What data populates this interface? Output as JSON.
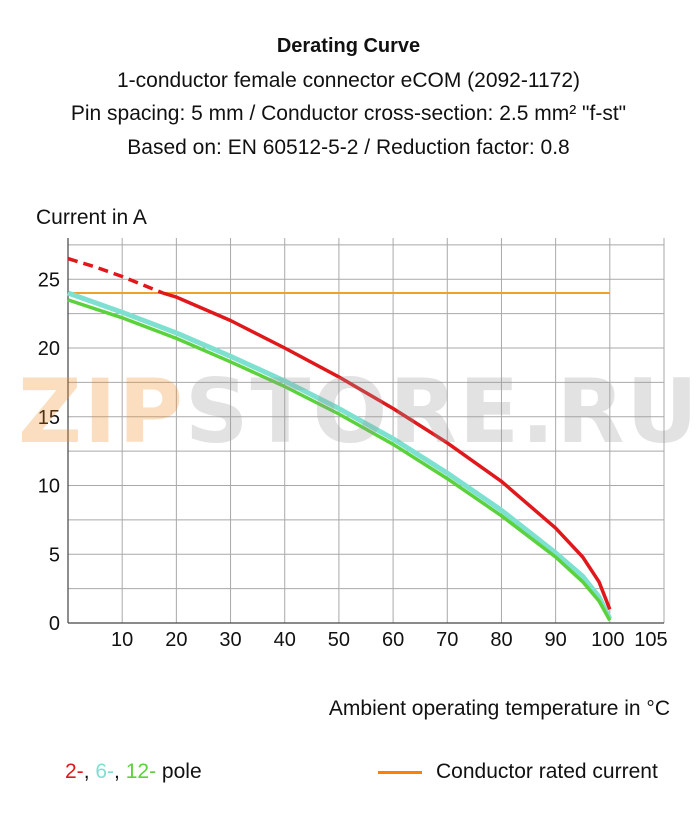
{
  "header": {
    "title": "Derating Curve",
    "line1": "1-conductor female connector eCOM (2092-1172)",
    "line2": "Pin spacing: 5 mm / Conductor cross-section: 2.5 mm² \"f-st\"",
    "line3": "Based on: EN 60512-5-2 / Reduction factor: 0.8"
  },
  "watermark": {
    "part1": "ZIP",
    "part2": "STORE.RU"
  },
  "chart_data": {
    "type": "line",
    "title": "Derating Curve",
    "xlabel": "Ambient operating temperature in °C",
    "ylabel": "Current in A",
    "xlim": [
      0,
      110
    ],
    "ylim": [
      0,
      28
    ],
    "x_ticks": [
      10,
      20,
      30,
      40,
      50,
      60,
      70,
      80,
      90,
      100,
      105
    ],
    "y_ticks": [
      0,
      5,
      10,
      15,
      20,
      25
    ],
    "grid": true,
    "series": [
      {
        "name": "2-",
        "color": "#e0181b",
        "extrapolated": [
          [
            0,
            26.5
          ],
          [
            5,
            25.9
          ],
          [
            10,
            25.2
          ],
          [
            15,
            24.4
          ],
          [
            17.5,
            24.0
          ]
        ],
        "points": [
          [
            17.5,
            24.0
          ],
          [
            20,
            23.7
          ],
          [
            30,
            22.0
          ],
          [
            40,
            20.0
          ],
          [
            50,
            17.9
          ],
          [
            60,
            15.6
          ],
          [
            70,
            13.1
          ],
          [
            80,
            10.3
          ],
          [
            90,
            6.9
          ],
          [
            95,
            4.8
          ],
          [
            98,
            3.0
          ],
          [
            100,
            1.0
          ]
        ]
      },
      {
        "name": "6-",
        "color": "#7de0d0",
        "points": [
          [
            0,
            24.0
          ],
          [
            10,
            22.6
          ],
          [
            20,
            21.1
          ],
          [
            30,
            19.4
          ],
          [
            40,
            17.6
          ],
          [
            50,
            15.6
          ],
          [
            60,
            13.4
          ],
          [
            70,
            10.9
          ],
          [
            80,
            8.2
          ],
          [
            90,
            5.1
          ],
          [
            95,
            3.4
          ],
          [
            98,
            1.9
          ],
          [
            100,
            0.3
          ]
        ]
      },
      {
        "name": "12-",
        "color": "#5bd23b",
        "points": [
          [
            0,
            23.5
          ],
          [
            10,
            22.2
          ],
          [
            20,
            20.7
          ],
          [
            30,
            19.0
          ],
          [
            40,
            17.2
          ],
          [
            50,
            15.2
          ],
          [
            60,
            13.0
          ],
          [
            70,
            10.5
          ],
          [
            80,
            7.8
          ],
          [
            90,
            4.8
          ],
          [
            95,
            3.0
          ],
          [
            98,
            1.6
          ],
          [
            100,
            0.2
          ]
        ]
      },
      {
        "name": "Conductor rated current",
        "color": "#f0a030",
        "points": [
          [
            0,
            24.0
          ],
          [
            100,
            24.0
          ]
        ]
      }
    ],
    "legend": {
      "poles_prefix": [
        "2-",
        "6-",
        "12-"
      ],
      "poles_suffix": "pole",
      "rated": "Conductor rated current",
      "rated_color": "#ff7f00",
      "placement": "bottom"
    }
  }
}
